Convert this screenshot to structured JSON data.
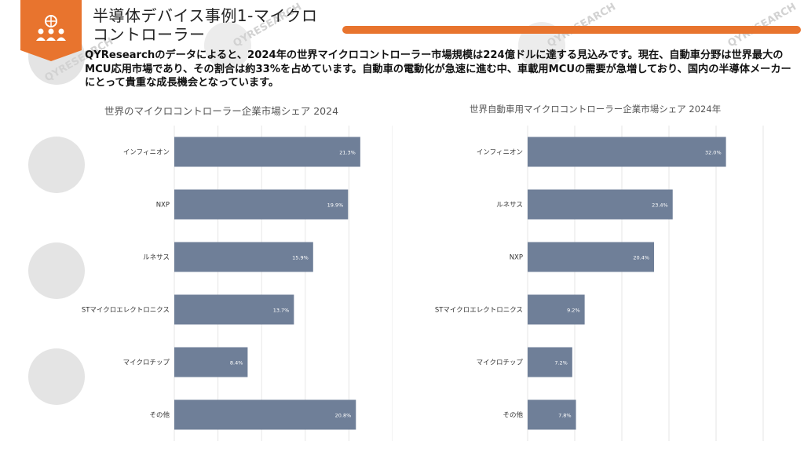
{
  "header": {
    "title_line1": "半導体デバイス事例1-マイクロ",
    "title_line2": "コントローラー",
    "description": "QYResearchのデータによると、2024年の世界マイクロコントローラー市場規模は224億ドルに達する見込みです。現在、自動車分野は世界最大のMCU応用市場であり、その割合は約33%を占めています。自動車の電動化が急速に進む中、車載用MCUの需要が急増しており、国内の半導体メーカーにとって貴重な成長機会となっています。"
  },
  "logo": {
    "icon": "people-network-icon",
    "color": "#e8742e"
  },
  "watermark": {
    "text": "QYRESEARCH"
  },
  "colors": {
    "bar": "#6f7f98",
    "accent": "#e8742e",
    "label": "#333333",
    "grid": "#e6e6e6"
  },
  "chart_data": [
    {
      "type": "bar",
      "orientation": "horizontal",
      "title": "世界のマイクロコントローラー企業市場シェア 2024",
      "categories": [
        "インフィニオン",
        "NXP",
        "ルネサス",
        "STマイクロエレクトロニクス",
        "マイクロチップ",
        "その他"
      ],
      "values": [
        21.3,
        19.9,
        15.9,
        13.7,
        8.4,
        20.8
      ],
      "labels": [
        "21.3%",
        "19.9%",
        "15.9%",
        "13.7%",
        "8.4%",
        "20.8%"
      ],
      "xlim": [
        0,
        25
      ],
      "grid": true
    },
    {
      "type": "bar",
      "orientation": "horizontal",
      "title": "世界自動車用マイクロコントローラー企業市場シェア 2024年",
      "categories": [
        "インフィニオン",
        "ルネサス",
        "NXP",
        "STマイクロエレクトロニクス",
        "マイクロチップ",
        "その他"
      ],
      "values": [
        32.0,
        23.4,
        20.4,
        9.2,
        7.2,
        7.8
      ],
      "labels": [
        "32.0%",
        "23.4%",
        "20.4%",
        "9.2%",
        "7.2%",
        "7.8%"
      ],
      "xlim": [
        0,
        38
      ],
      "grid": true
    }
  ]
}
